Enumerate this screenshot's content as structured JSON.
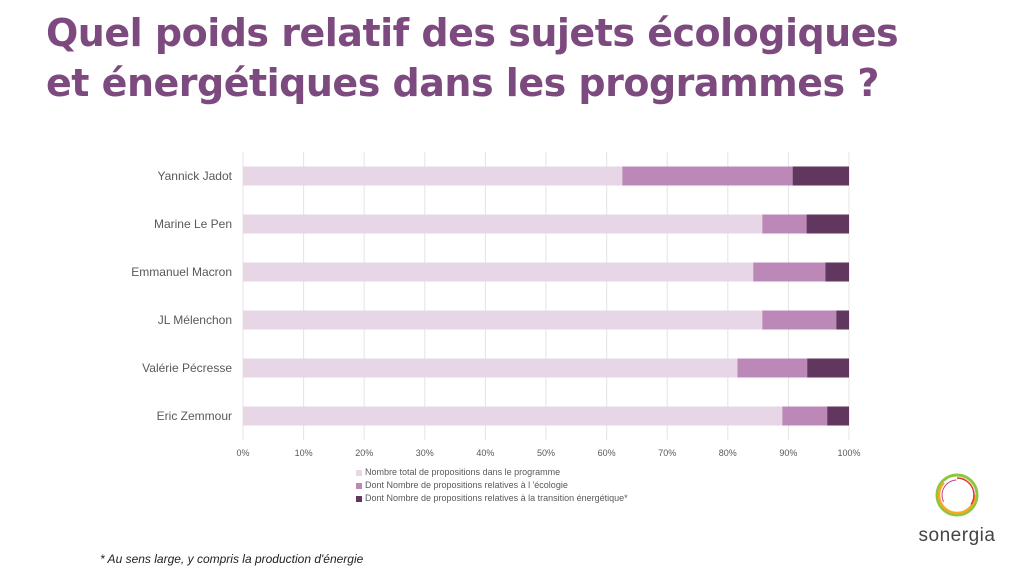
{
  "title_lines": [
    "Quel poids relatif des sujets écologiques",
    "et énergétiques dans les programmes ?"
  ],
  "chart_data": {
    "type": "bar",
    "orientation": "horizontal",
    "stacked": true,
    "categories": [
      "Yannick Jadot",
      "Marine Le Pen",
      "Emmanuel Macron",
      "JL Mélenchon",
      "Valérie Pécresse",
      "Eric Zemmour"
    ],
    "series": [
      {
        "name": "Nombre total de propositions dans le programme",
        "color": "#e6d6e6",
        "values": [
          62.6,
          85.7,
          84.2,
          85.7,
          81.6,
          89.0
        ]
      },
      {
        "name": "Dont Nombre de propositions relatives à l 'écologie",
        "color": "#bb88b8",
        "values": [
          28.1,
          7.3,
          11.9,
          12.2,
          11.5,
          7.4
        ]
      },
      {
        "name": "Dont Nombre de propositions relatives à la transition énergétique*",
        "color": "#62375f",
        "values": [
          9.3,
          7.0,
          3.9,
          2.1,
          6.9,
          3.6
        ]
      }
    ],
    "xlim": [
      0,
      100
    ],
    "xticks": [
      "0%",
      "10%",
      "20%",
      "30%",
      "40%",
      "50%",
      "60%",
      "70%",
      "80%",
      "90%",
      "100%"
    ],
    "grid": true,
    "legend": "bottom"
  },
  "footnote": "* Au sens large, y compris la production d'énergie",
  "logo_text": "sonergia"
}
